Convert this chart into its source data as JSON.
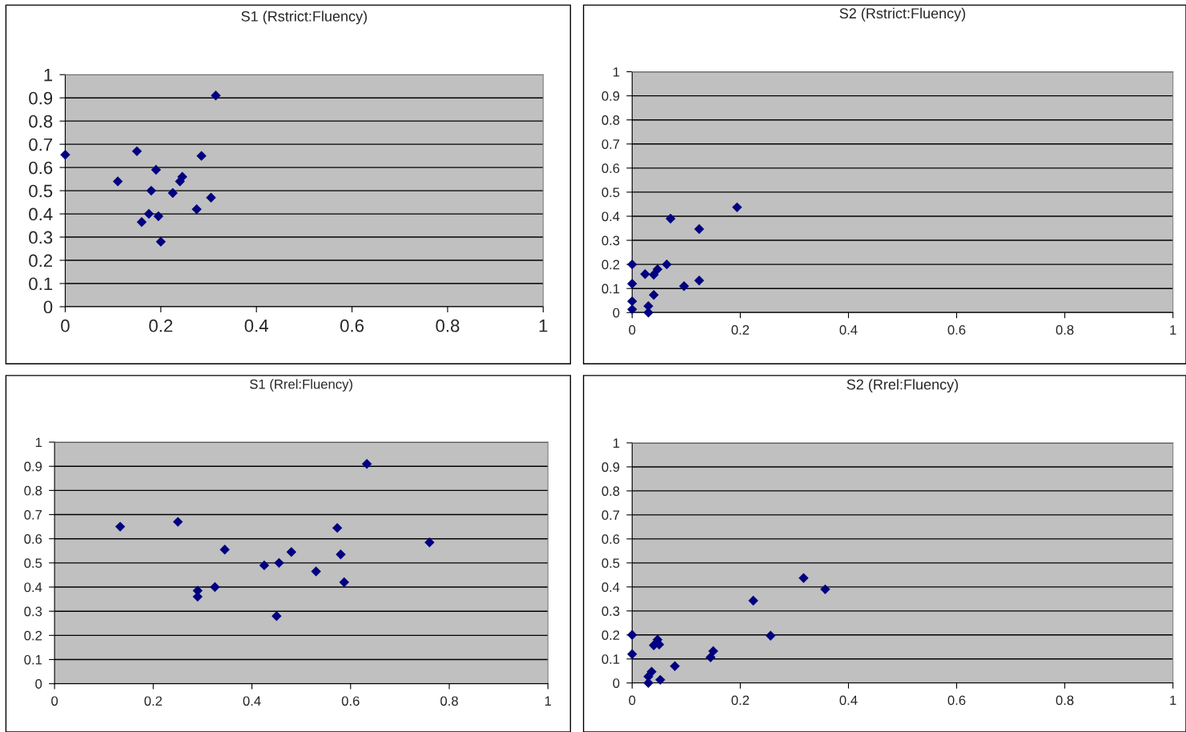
{
  "chart_data": [
    {
      "type": "scatter",
      "title": "S1 (Rstrict:Fluency)",
      "marker": "diamond",
      "grid": "y",
      "xlim": [
        0,
        1
      ],
      "ylim": [
        0,
        1
      ],
      "xticks": [
        0,
        0.2,
        0.4,
        0.6,
        0.8,
        1
      ],
      "yticks": [
        0,
        0.1,
        0.2,
        0.3,
        0.4,
        0.5,
        0.6,
        0.7,
        0.8,
        0.9,
        1
      ],
      "series": [
        {
          "color": "#000080",
          "x": [
            0,
            0.11,
            0.15,
            0.19,
            0.18,
            0.175,
            0.16,
            0.195,
            0.2,
            0.225,
            0.24,
            0.245,
            0.275,
            0.285,
            0.305,
            0.315
          ],
          "values": [
            0.655,
            0.54,
            0.67,
            0.59,
            0.5,
            0.4,
            0.365,
            0.39,
            0.28,
            0.49,
            0.54,
            0.56,
            0.42,
            0.65,
            0.47,
            0.91
          ]
        }
      ]
    },
    {
      "type": "scatter",
      "title": "S2 (Rstrict:Fluency)",
      "marker": "diamond",
      "grid": "y",
      "xlim": [
        0,
        1
      ],
      "ylim": [
        0,
        1
      ],
      "xticks": [
        0,
        0.2,
        0.4,
        0.6,
        0.8,
        1
      ],
      "yticks": [
        0,
        0.1,
        0.2,
        0.3,
        0.4,
        0.5,
        0.6,
        0.7,
        0.8,
        0.9,
        1
      ],
      "series": [
        {
          "color": "#000080",
          "x": [
            0,
            0,
            0,
            0,
            0.024,
            0.03,
            0.03,
            0.04,
            0.04,
            0.047,
            0.064,
            0.071,
            0.096,
            0.124,
            0.124,
            0.194
          ],
          "values": [
            0.2,
            0.12,
            0.047,
            0.013,
            0.16,
            0,
            0.027,
            0.073,
            0.157,
            0.18,
            0.2,
            0.39,
            0.11,
            0.133,
            0.347,
            0.437
          ]
        }
      ]
    },
    {
      "type": "scatter",
      "title": "S1 (Rrel:Fluency)",
      "marker": "diamond",
      "grid": "y",
      "xlim": [
        0,
        1
      ],
      "ylim": [
        0,
        1
      ],
      "xticks": [
        0,
        0.2,
        0.4,
        0.6,
        0.8,
        1
      ],
      "yticks": [
        0,
        0.1,
        0.2,
        0.3,
        0.4,
        0.5,
        0.6,
        0.7,
        0.8,
        0.9,
        1
      ],
      "series": [
        {
          "color": "#000080",
          "x": [
            0.133,
            0.25,
            0.29,
            0.29,
            0.325,
            0.345,
            0.425,
            0.455,
            0.45,
            0.48,
            0.53,
            0.573,
            0.58,
            0.587,
            0.633,
            0.76
          ],
          "values": [
            0.65,
            0.67,
            0.385,
            0.36,
            0.4,
            0.555,
            0.49,
            0.5,
            0.28,
            0.545,
            0.465,
            0.645,
            0.535,
            0.42,
            0.91,
            0.585
          ]
        }
      ]
    },
    {
      "type": "scatter",
      "title": "S2 (Rrel:Fluency)",
      "marker": "diamond",
      "grid": "y",
      "xlim": [
        0,
        1
      ],
      "ylim": [
        0,
        1
      ],
      "xticks": [
        0,
        0.2,
        0.4,
        0.6,
        0.8,
        1
      ],
      "yticks": [
        0,
        0.1,
        0.2,
        0.3,
        0.4,
        0.5,
        0.6,
        0.7,
        0.8,
        0.9,
        1
      ],
      "series": [
        {
          "color": "#000080",
          "x": [
            0,
            0,
            0.03,
            0.03,
            0.036,
            0.04,
            0.047,
            0.05,
            0.052,
            0.079,
            0.145,
            0.15,
            0.224,
            0.256,
            0.317,
            0.357
          ],
          "values": [
            0.2,
            0.12,
            0,
            0.027,
            0.047,
            0.157,
            0.18,
            0.16,
            0.013,
            0.07,
            0.107,
            0.133,
            0.343,
            0.197,
            0.437,
            0.39
          ]
        }
      ]
    }
  ]
}
